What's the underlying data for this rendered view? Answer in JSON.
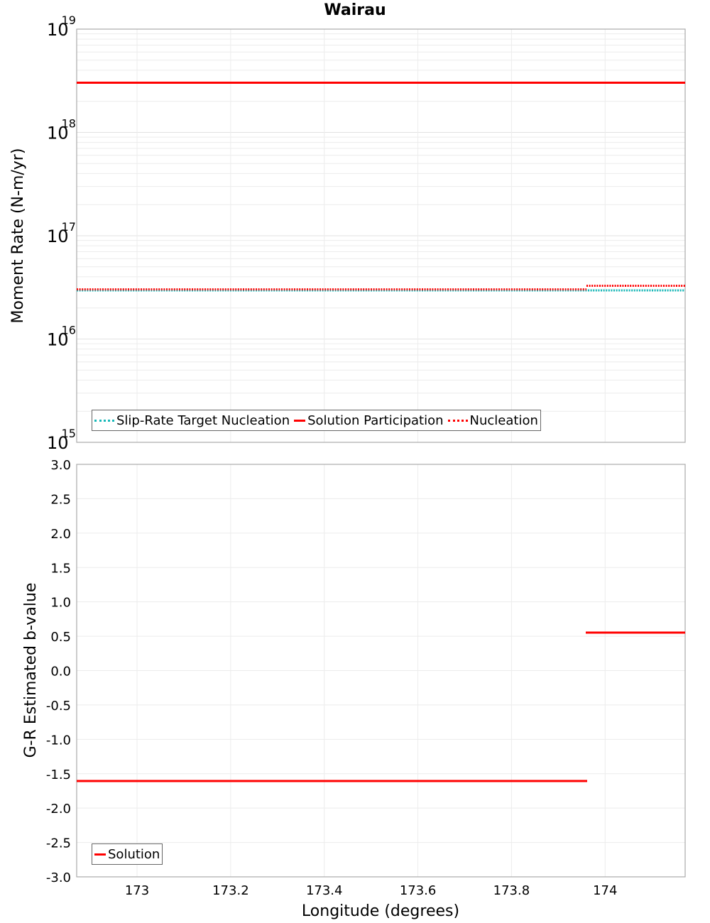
{
  "chart_data": [
    {
      "type": "line",
      "title": "Wairau",
      "xlabel": "Longitude (degrees)",
      "ylabel": "Moment Rate (N-m/yr)",
      "yscale": "log",
      "ylim": [
        1000000000000000.0,
        1e+19
      ],
      "xlim": [
        172.87,
        174.17
      ],
      "x_ticks": [
        "173",
        "173.2",
        "173.4",
        "173.6",
        "173.8",
        "174"
      ],
      "y_ticks": [
        "10^15",
        "10^16",
        "10^17",
        "10^18",
        "10^19"
      ],
      "grid": true,
      "legend_position": "lower-left",
      "series": [
        {
          "name": "Slip-Rate Target Nucleation",
          "style": "dotted",
          "color": "#17b8b8",
          "x": [
            172.87,
            173.96,
            173.96,
            174.17
          ],
          "values": [
            2.9e+16,
            2.9e+16,
            2.9e+16,
            2.9e+16
          ]
        },
        {
          "name": "Solution Participation",
          "style": "solid",
          "color": "#ff0000",
          "x": [
            172.87,
            173.96,
            173.96,
            174.17
          ],
          "values": [
            3e+18,
            3e+18,
            3e+18,
            3e+18
          ]
        },
        {
          "name": "Nucleation",
          "style": "dotted",
          "color": "#ff0000",
          "x": [
            172.87,
            173.96,
            173.96,
            174.17
          ],
          "values": [
            2.9e+16,
            2.9e+16,
            3.3e+16,
            3.3e+16
          ]
        }
      ]
    },
    {
      "type": "line",
      "title": "",
      "xlabel": "Longitude (degrees)",
      "ylabel": "G-R Estimated b-value",
      "ylim": [
        -3.0,
        3.0
      ],
      "xlim": [
        172.87,
        174.17
      ],
      "x_ticks": [
        "173",
        "173.2",
        "173.4",
        "173.6",
        "173.8",
        "174"
      ],
      "y_ticks": [
        "3.0",
        "2.5",
        "2.0",
        "1.5",
        "1.0",
        "0.5",
        "0.0",
        "-0.5",
        "-1.0",
        "-1.5",
        "-2.0",
        "-2.5",
        "-3.0"
      ],
      "grid": true,
      "legend_position": "lower-left",
      "series": [
        {
          "name": "Solution",
          "style": "solid",
          "color": "#ff0000",
          "segments": [
            {
              "x": [
                172.87,
                173.96
              ],
              "values": [
                -1.61,
                -1.61
              ]
            },
            {
              "x": [
                173.96,
                174.17
              ],
              "values": [
                0.55,
                0.55
              ]
            }
          ]
        }
      ]
    }
  ],
  "title": "Wairau",
  "top": {
    "ylabel": "Moment Rate (N-m/yr)",
    "y_ticks": [
      {
        "base": "10",
        "exp": "19"
      },
      {
        "base": "10",
        "exp": "18"
      },
      {
        "base": "10",
        "exp": "17"
      },
      {
        "base": "10",
        "exp": "16"
      },
      {
        "base": "10",
        "exp": "15"
      }
    ],
    "legend": [
      "Slip-Rate Target Nucleation",
      "Solution Participation",
      "Nucleation"
    ]
  },
  "bottom": {
    "ylabel": "G-R Estimated b-value",
    "y_ticks": [
      "3.0",
      "2.5",
      "2.0",
      "1.5",
      "1.0",
      "0.5",
      "0.0",
      "-0.5",
      "-1.0",
      "-1.5",
      "-2.0",
      "-2.5",
      "-3.0"
    ],
    "legend": [
      "Solution"
    ],
    "xlabel": "Longitude (degrees)",
    "x_ticks": [
      "173",
      "173.2",
      "173.4",
      "173.6",
      "173.8",
      "174"
    ]
  },
  "colors": {
    "cyan": "#17b8b8",
    "red": "#ff0000",
    "grid": "#e8e8e8",
    "frame": "#aaaaaa"
  }
}
